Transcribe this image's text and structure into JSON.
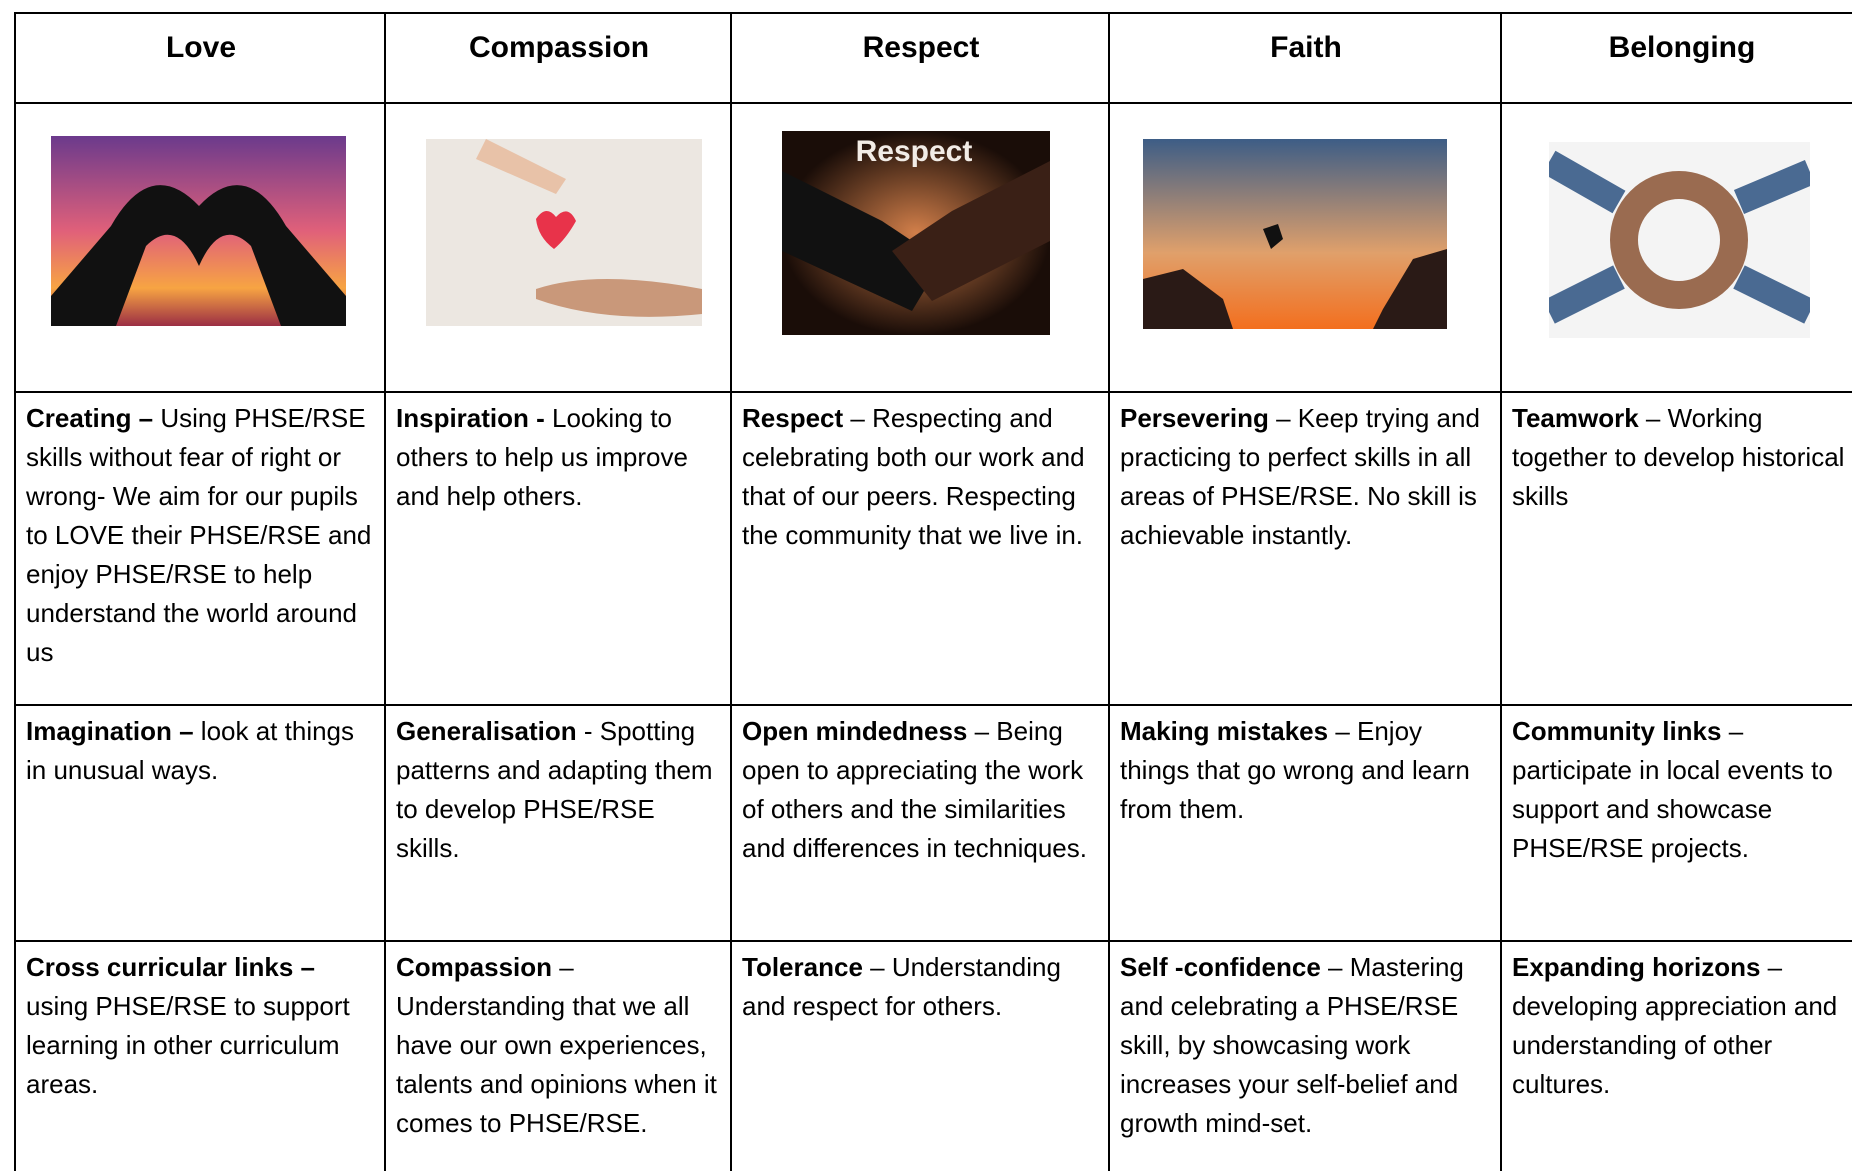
{
  "table": {
    "headers": [
      "Love",
      "Compassion",
      "Respect",
      "Faith",
      "Belonging"
    ],
    "image_label": "Respect",
    "rows": [
      [
        {
          "bold": "Creating –",
          "text": " Using PHSE/RSE skills without fear of right or wrong- We aim for our pupils to LOVE their PHSE/RSE and enjoy PHSE/RSE to help understand the world around us"
        },
        {
          "bold": "Inspiration -",
          "text": " Looking to others to help us improve and help others."
        },
        {
          "bold": "Respect",
          "text": " – Respecting and celebrating both our work and that of our peers. Respecting the community that we live in."
        },
        {
          "bold": "Persevering",
          "text": " – Keep trying and practicing to perfect skills in all areas of PHSE/RSE. No skill is achievable instantly."
        },
        {
          "bold": "Teamwork",
          "text": " – Working together to develop historical skills"
        }
      ],
      [
        {
          "bold": "Imagination –",
          "text": " look at things in unusual ways."
        },
        {
          "bold": "Generalisation",
          "text": " - Spotting patterns and adapting them to develop PHSE/RSE skills."
        },
        {
          "bold": "Open mindedness",
          "text": " – Being open to appreciating the work of others and the similarities and differences in techniques."
        },
        {
          "bold": "Making mistakes",
          "text": " – Enjoy things that go wrong and learn from them."
        },
        {
          "bold": "Community links",
          "text": " – participate in local events to support and showcase PHSE/RSE projects."
        }
      ],
      [
        {
          "bold": "Cross curricular links –",
          "text": " using PHSE/RSE to support learning in other curriculum areas."
        },
        {
          "bold": "Compassion",
          "text": " – Understanding that we all have our own experiences, talents and opinions when it comes to PHSE/RSE."
        },
        {
          "bold": "Tolerance",
          "text": " – Understanding and respect for others."
        },
        {
          "bold": "Self -confidence",
          "text": " – Mastering and celebrating a PHSE/RSE skill, by showcasing work increases your self-belief and growth mind-set."
        },
        {
          "bold": "Expanding horizons",
          "text": " – developing appreciation and understanding of other cultures."
        }
      ]
    ]
  }
}
